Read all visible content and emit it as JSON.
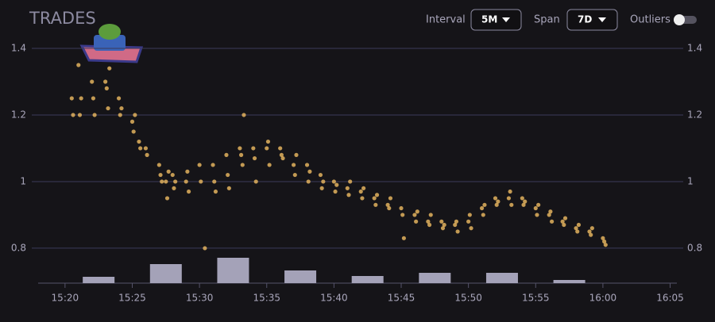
{
  "header": {
    "title": "TRADES",
    "interval_label": "Interval",
    "interval_value": "5M",
    "span_label": "Span",
    "span_value": "7D",
    "outliers_label": "Outliers"
  },
  "chart_data": {
    "type": "scatter",
    "color": "#e2b25e",
    "grid": true,
    "x": [
      20.5,
      20.6,
      21,
      21.1,
      21.2,
      22,
      22.1,
      22.2,
      23,
      23.1,
      23.2,
      23.3,
      24,
      24.1,
      24.2,
      25,
      25.1,
      25.2,
      25.5,
      25.6,
      26,
      26.1,
      27,
      27.1,
      27.2,
      27.5,
      27.6,
      27.7,
      28,
      28.1,
      28.2,
      29,
      29.1,
      29.2,
      30,
      30.1,
      30.4,
      31,
      31.1,
      31.2,
      32,
      32.1,
      32.2,
      33,
      33.1,
      33.2,
      33.3,
      34,
      34.1,
      34.2,
      35,
      35.1,
      35.2,
      36,
      36.1,
      36.2,
      37,
      37.1,
      37.2,
      38,
      38.1,
      38.2,
      39,
      39.1,
      39.2,
      40,
      40.1,
      40.2,
      41,
      41.1,
      41.2,
      42,
      42.1,
      42.2,
      43,
      43.1,
      43.2,
      44,
      44.1,
      44.2,
      45,
      45.1,
      45.2,
      46,
      46.1,
      46.2,
      47,
      47.1,
      47.2,
      48,
      48.1,
      48.2,
      49,
      49.1,
      49.2,
      50,
      50.1,
      50.2,
      51,
      51.1,
      51.2,
      52,
      52.1,
      52.2,
      53,
      53.1,
      53.2,
      54,
      54.1,
      54.2,
      55,
      55.1,
      55.2,
      56,
      56.1,
      56.2,
      57,
      57.1,
      57.2,
      58,
      58.1,
      58.2,
      59,
      59.1,
      59.2,
      60,
      60.1,
      60.2
    ],
    "y": [
      1.25,
      1.2,
      1.35,
      1.2,
      1.25,
      1.3,
      1.25,
      1.2,
      1.3,
      1.28,
      1.22,
      1.34,
      1.25,
      1.2,
      1.22,
      1.18,
      1.15,
      1.2,
      1.12,
      1.1,
      1.1,
      1.08,
      1.05,
      1.02,
      1.0,
      1.0,
      0.95,
      1.03,
      1.02,
      0.98,
      1.0,
      1.0,
      1.03,
      0.97,
      1.05,
      1.0,
      0.8,
      1.05,
      1.0,
      0.97,
      1.08,
      1.02,
      0.98,
      1.1,
      1.08,
      1.05,
      1.2,
      1.1,
      1.07,
      1.0,
      1.1,
      1.12,
      1.05,
      1.1,
      1.08,
      1.07,
      1.05,
      1.02,
      1.08,
      1.05,
      1.0,
      1.03,
      1.02,
      0.98,
      1.0,
      1.0,
      0.97,
      0.99,
      0.98,
      0.96,
      1.0,
      0.97,
      0.95,
      0.98,
      0.95,
      0.93,
      0.96,
      0.93,
      0.92,
      0.95,
      0.92,
      0.9,
      0.83,
      0.9,
      0.88,
      0.91,
      0.88,
      0.87,
      0.9,
      0.88,
      0.86,
      0.87,
      0.87,
      0.88,
      0.85,
      0.88,
      0.9,
      0.86,
      0.92,
      0.9,
      0.93,
      0.95,
      0.93,
      0.94,
      0.95,
      0.97,
      0.93,
      0.95,
      0.93,
      0.94,
      0.92,
      0.9,
      0.93,
      0.9,
      0.91,
      0.88,
      0.88,
      0.87,
      0.89,
      0.86,
      0.85,
      0.87,
      0.85,
      0.84,
      0.86,
      0.83,
      0.82,
      0.81
    ],
    "xlim": [
      18,
      65.5
    ],
    "ylim": [
      0.695,
      1.45
    ],
    "yticks": [
      0.8,
      1,
      1.2,
      1.4
    ],
    "xticks": [
      {
        "value": 20,
        "label": "15:20"
      },
      {
        "value": 25,
        "label": "15:25"
      },
      {
        "value": 30,
        "label": "15:30"
      },
      {
        "value": 35,
        "label": "15:35"
      },
      {
        "value": 40,
        "label": "15:40"
      },
      {
        "value": 45,
        "label": "15:45"
      },
      {
        "value": 50,
        "label": "15:50"
      },
      {
        "value": 55,
        "label": "15:55"
      },
      {
        "value": 60,
        "label": "16:00"
      },
      {
        "value": 65,
        "label": "16:05"
      }
    ],
    "volume": {
      "color": "#a4a2b8",
      "x": [
        22.5,
        27.5,
        32.5,
        37.5,
        42.5,
        47.5,
        52.5,
        57.5
      ],
      "values": [
        8,
        24,
        32,
        16,
        9,
        13,
        13,
        4
      ]
    }
  }
}
